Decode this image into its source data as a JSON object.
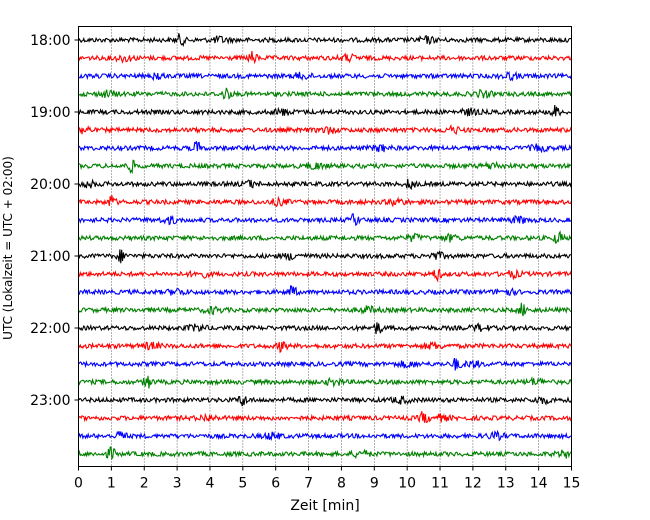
{
  "chart_data": {
    "type": "line",
    "title": "",
    "xlabel": "Zeit  [min]",
    "ylabel": "UTC (Lokalzeit = UTC + 02:00)",
    "xlim": [
      0,
      15
    ],
    "x_ticks": [
      0,
      1,
      2,
      3,
      4,
      5,
      6,
      7,
      8,
      9,
      10,
      11,
      12,
      13,
      14,
      15
    ],
    "x_tick_labels": [
      "0",
      "1",
      "2",
      "3",
      "4",
      "5",
      "6",
      "7",
      "8",
      "9",
      "10",
      "11",
      "12",
      "13",
      "14",
      "15"
    ],
    "y_tick_labels": [
      "18:00",
      "19:00",
      "20:00",
      "21:00",
      "22:00",
      "23:00"
    ],
    "vertical_grid": true,
    "grid_style": "dotted",
    "trace_interval_min": 15,
    "trace_colors": [
      "#000000",
      "#ff0000",
      "#0000ff",
      "#008000"
    ],
    "series": [
      {
        "start": "18:00",
        "color": "#000000",
        "events_min": [
          3.1,
          4.3,
          10.6
        ]
      },
      {
        "start": "18:15",
        "color": "#ff0000",
        "events_min": [
          5.3,
          1.4,
          8.2
        ]
      },
      {
        "start": "18:30",
        "color": "#0000ff",
        "events_min": [
          2.4,
          6.8,
          13.1
        ]
      },
      {
        "start": "18:45",
        "color": "#008000",
        "events_min": [
          4.5,
          12.3,
          0.9
        ]
      },
      {
        "start": "19:00",
        "color": "#000000",
        "events_min": [
          14.5,
          6.2,
          11.9
        ]
      },
      {
        "start": "19:15",
        "color": "#ff0000",
        "events_min": [
          0.2,
          7.6,
          11.4
        ]
      },
      {
        "start": "19:30",
        "color": "#0000ff",
        "events_min": [
          3.6,
          9.2,
          14.0
        ]
      },
      {
        "start": "19:45",
        "color": "#008000",
        "events_min": [
          1.6,
          7.2,
          12.6
        ]
      },
      {
        "start": "20:00",
        "color": "#000000",
        "events_min": [
          10.1,
          0.3,
          5.2
        ]
      },
      {
        "start": "20:15",
        "color": "#ff0000",
        "events_min": [
          1.0,
          6.1,
          9.7
        ]
      },
      {
        "start": "20:30",
        "color": "#0000ff",
        "events_min": [
          8.4,
          2.8,
          13.4
        ]
      },
      {
        "start": "20:45",
        "color": "#008000",
        "events_min": [
          14.6,
          11.3,
          10.2
        ]
      },
      {
        "start": "21:00",
        "color": "#000000",
        "events_min": [
          1.3,
          10.9,
          6.5
        ]
      },
      {
        "start": "21:15",
        "color": "#ff0000",
        "events_min": [
          10.9,
          3.7,
          13.2
        ]
      },
      {
        "start": "21:30",
        "color": "#0000ff",
        "events_min": [
          6.5,
          3.0,
          13.0
        ]
      },
      {
        "start": "21:45",
        "color": "#008000",
        "events_min": [
          13.5,
          8.8,
          4.1
        ]
      },
      {
        "start": "22:00",
        "color": "#000000",
        "events_min": [
          9.1,
          3.6,
          12.2
        ]
      },
      {
        "start": "22:15",
        "color": "#ff0000",
        "events_min": [
          6.2,
          10.8,
          2.2
        ]
      },
      {
        "start": "22:30",
        "color": "#0000ff",
        "events_min": [
          11.5,
          10.0,
          12.0
        ]
      },
      {
        "start": "22:45",
        "color": "#008000",
        "events_min": [
          2.1,
          7.8,
          13.9
        ]
      },
      {
        "start": "23:00",
        "color": "#000000",
        "events_min": [
          5.0,
          9.8,
          14.1
        ]
      },
      {
        "start": "23:15",
        "color": "#ff0000",
        "events_min": [
          10.5,
          11.0,
          3.9
        ]
      },
      {
        "start": "23:30",
        "color": "#0000ff",
        "events_min": [
          1.3,
          5.9,
          12.7
        ]
      },
      {
        "start": "23:45",
        "color": "#008000",
        "events_min": [
          1.0,
          8.6,
          14.8
        ]
      }
    ]
  }
}
